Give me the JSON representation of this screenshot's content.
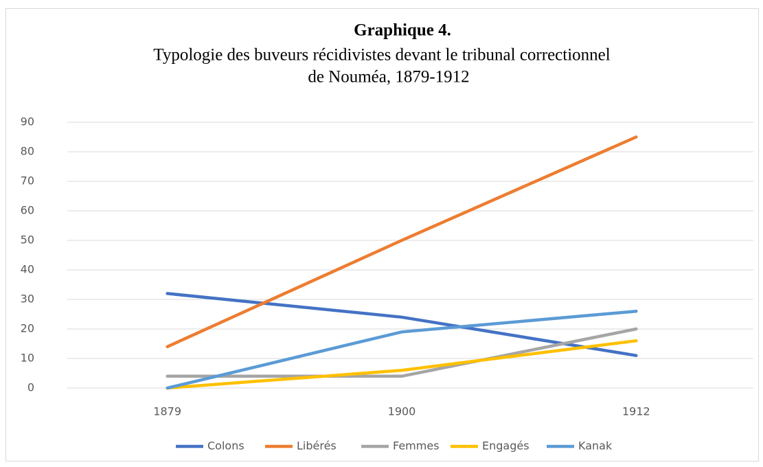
{
  "chart_data": {
    "type": "line",
    "title": "Graphique 4.",
    "subtitle": [
      "Typologie des buveurs récidivistes devant le tribunal correctionnel",
      "de Nouméa, 1879-1912"
    ],
    "categories": [
      "1879",
      "1900",
      "1912"
    ],
    "series": [
      {
        "name": "Colons",
        "color": "#4472c4",
        "values": [
          32,
          24,
          11
        ]
      },
      {
        "name": "Libérés",
        "color": "#ed7d31",
        "values": [
          14,
          50,
          85
        ]
      },
      {
        "name": "Femmes",
        "color": "#a5a5a5",
        "values": [
          4,
          4,
          20
        ]
      },
      {
        "name": "Engagés",
        "color": "#ffc000",
        "values": [
          0,
          6,
          16
        ]
      },
      {
        "name": "Kanak",
        "color": "#5b9bd5",
        "values": [
          0,
          19,
          26
        ]
      }
    ],
    "ylim": [
      0,
      90
    ],
    "yticks": [
      0,
      10,
      20,
      30,
      40,
      50,
      60,
      70,
      80,
      90
    ],
    "grid": true,
    "legend": "bottom"
  }
}
